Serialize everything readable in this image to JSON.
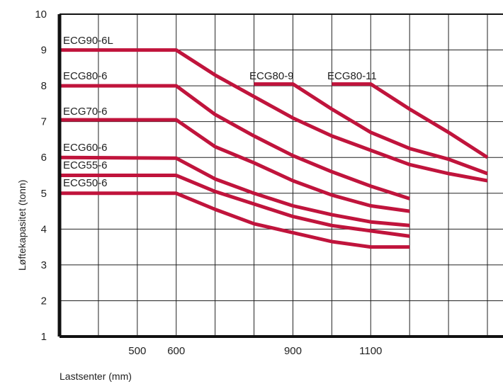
{
  "chart_data": {
    "type": "line",
    "title": "",
    "xlabel": "Lastsenter (mm)",
    "ylabel": "Løftekapasitet (tonn)",
    "xlim": [
      300,
      1400
    ],
    "ylim": [
      1,
      10
    ],
    "x_ticks": [
      500,
      600,
      900,
      1100
    ],
    "y_ticks": [
      1,
      2,
      3,
      4,
      5,
      6,
      7,
      8,
      9,
      10
    ],
    "grid": true,
    "line_color": "#c0143c",
    "series": [
      {
        "name": "ECG90-6L",
        "x": [
          300,
          600,
          700,
          800,
          900,
          1000,
          1100,
          1200,
          1300,
          1400
        ],
        "y": [
          9.0,
          9.0,
          8.3,
          7.7,
          7.1,
          6.6,
          6.2,
          5.8,
          5.55,
          5.35
        ]
      },
      {
        "name": "ECG80-6",
        "x": [
          300,
          600,
          700,
          800,
          900,
          1000,
          1100,
          1200
        ],
        "y": [
          8.0,
          8.0,
          7.2,
          6.6,
          6.05,
          5.6,
          5.2,
          4.85
        ]
      },
      {
        "name": "ECG80-9",
        "x": [
          800,
          900,
          1000,
          1100,
          1200,
          1300,
          1400
        ],
        "y": [
          8.05,
          8.05,
          7.35,
          6.7,
          6.25,
          5.95,
          5.55
        ]
      },
      {
        "name": "ECG80-11",
        "x": [
          1000,
          1100,
          1200,
          1300,
          1400
        ],
        "y": [
          8.05,
          8.05,
          7.35,
          6.7,
          6.0
        ]
      },
      {
        "name": "ECG70-6",
        "x": [
          300,
          600,
          700,
          800,
          900,
          1000,
          1100,
          1200
        ],
        "y": [
          7.05,
          7.05,
          6.3,
          5.85,
          5.35,
          4.95,
          4.65,
          4.5
        ]
      },
      {
        "name": "ECG60-6",
        "x": [
          300,
          600,
          700,
          800,
          900,
          1000,
          1100,
          1200
        ],
        "y": [
          6.0,
          5.98,
          5.4,
          5.0,
          4.65,
          4.4,
          4.2,
          4.1
        ]
      },
      {
        "name": "ECG55-6",
        "x": [
          300,
          600,
          700,
          800,
          900,
          1000,
          1100,
          1200
        ],
        "y": [
          5.5,
          5.5,
          5.05,
          4.7,
          4.35,
          4.1,
          3.95,
          3.8
        ]
      },
      {
        "name": "ECG50-6",
        "x": [
          300,
          600,
          700,
          800,
          900,
          1000,
          1100,
          1200
        ],
        "y": [
          5.0,
          5.0,
          4.55,
          4.15,
          3.9,
          3.65,
          3.5,
          3.5
        ]
      }
    ]
  },
  "series_labels": [
    "ECG90-6L",
    "ECG80-6",
    "ECG80-9",
    "ECG80-11",
    "ECG70-6",
    "ECG60-6",
    "ECG55-6",
    "ECG50-6"
  ]
}
